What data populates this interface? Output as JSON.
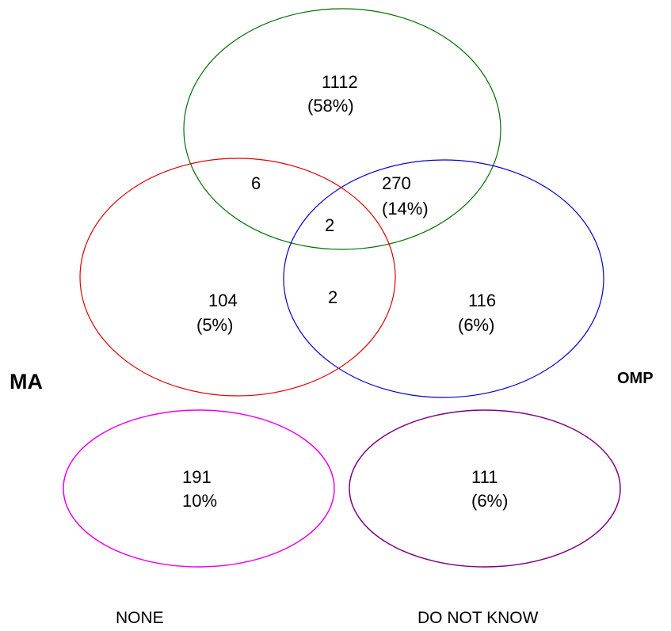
{
  "colors": {
    "top_set": "#007000",
    "ma_set": "#e00000",
    "omp_set": "#0000d0",
    "none_set": "#ee00ee",
    "dnk_set": "#800080"
  },
  "sets": {
    "ma_label": "MA",
    "omp_label": "OMP"
  },
  "regions": {
    "top_only": {
      "count": "1112",
      "pct": "(58%)"
    },
    "top_ma": {
      "count": "6"
    },
    "top_omp": {
      "count": "270",
      "pct": "(14%)"
    },
    "top_ma_omp": {
      "count": "2"
    },
    "ma_only": {
      "count": "104",
      "pct": "(5%)"
    },
    "ma_omp": {
      "count": "2"
    },
    "omp_only": {
      "count": "116",
      "pct": "(6%)"
    },
    "none": {
      "count": "191",
      "pct": "10%",
      "label": "NONE"
    },
    "do_not_know": {
      "count": "111",
      "pct": "(6%)",
      "label": "DO NOT KNOW"
    }
  }
}
